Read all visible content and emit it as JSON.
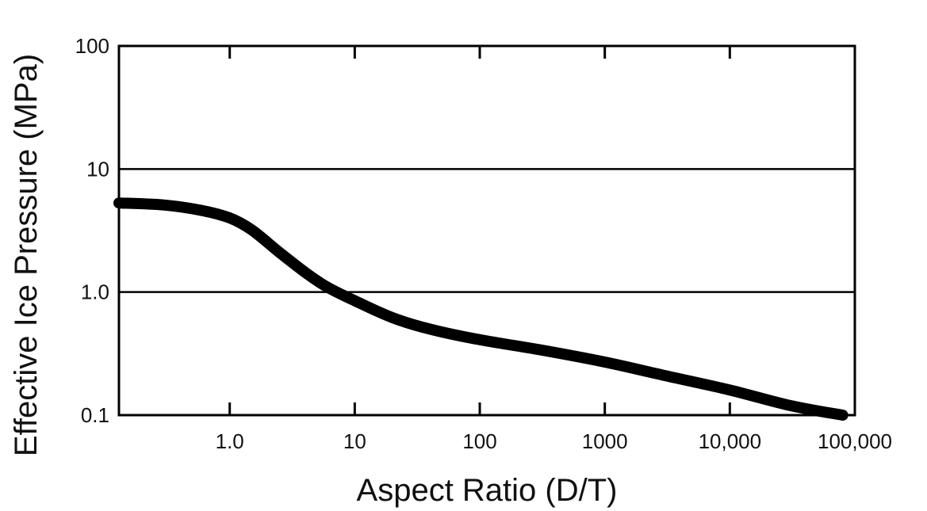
{
  "chart_data": {
    "type": "line",
    "title": "",
    "xlabel": "Aspect Ratio (D/T)",
    "ylabel": "Effective Ice Pressure (MPa)",
    "x_scale": "log",
    "y_scale": "log",
    "xlim": [
      0.13,
      100000
    ],
    "ylim": [
      0.1,
      100
    ],
    "x_ticks": [
      {
        "value": 1,
        "label": "1.0"
      },
      {
        "value": 10,
        "label": "10"
      },
      {
        "value": 100,
        "label": "100"
      },
      {
        "value": 1000,
        "label": "1000"
      },
      {
        "value": 10000,
        "label": "10,000"
      },
      {
        "value": 100000,
        "label": "100,000"
      }
    ],
    "y_ticks": [
      {
        "value": 0.1,
        "label": "0.1"
      },
      {
        "value": 1,
        "label": "1.0"
      },
      {
        "value": 10,
        "label": "10"
      },
      {
        "value": 100,
        "label": "100"
      }
    ],
    "gridlines_y": [
      1,
      10
    ],
    "grid": "horizontal at 1.0 and 10",
    "legend": "none",
    "line_color": "#000000",
    "series": [
      {
        "x": [
          0.13,
          0.3,
          0.6,
          1.0,
          1.5,
          2.5,
          4,
          6,
          10,
          20,
          40,
          100,
          300,
          1000,
          3000,
          10000,
          30000,
          80000
        ],
        "values": [
          5.3,
          5.1,
          4.6,
          4.0,
          3.2,
          2.1,
          1.45,
          1.1,
          0.85,
          0.62,
          0.5,
          0.41,
          0.34,
          0.27,
          0.21,
          0.16,
          0.12,
          0.1
        ]
      }
    ]
  }
}
